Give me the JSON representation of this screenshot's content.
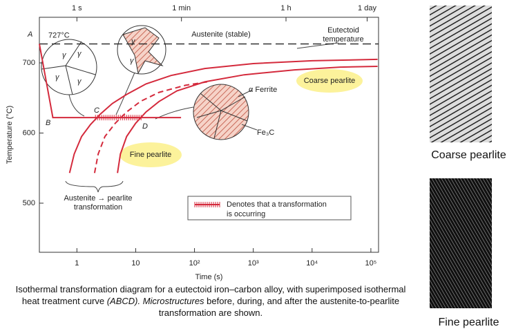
{
  "chart_data": {
    "type": "line",
    "log_x": true,
    "xlabel": "Time (s)",
    "ylabel": "Temperature (°C)",
    "xlim": [
      0.23,
      135000
    ],
    "ylim": [
      430,
      765
    ],
    "xticks": [
      1,
      10,
      {
        "value": 100,
        "label": "10²"
      },
      {
        "value": 1000,
        "label": "10³"
      },
      {
        "value": 10000,
        "label": "10⁴"
      },
      {
        "value": 100000,
        "label": "10⁵"
      }
    ],
    "x2ticks": [
      {
        "value": 1,
        "label": "1 s"
      },
      {
        "value": 60,
        "label": "1 min"
      },
      {
        "value": 3600,
        "label": "1 h"
      },
      {
        "value": 86400,
        "label": "1 day"
      }
    ],
    "yticks": [
      500,
      600,
      700
    ],
    "eutectoid": {
      "value": 727,
      "label": "727°C"
    },
    "series": [
      {
        "color": "#d42a3c",
        "dash": false,
        "x": [
          0.75,
          0.9,
          1.2,
          1.7,
          2.5,
          4,
          7,
          15,
          40,
          150,
          1000,
          10000,
          130000
        ],
        "values": [
          543,
          570,
          595,
          612,
          627,
          642,
          655,
          670,
          682,
          692,
          699,
          703,
          705
        ]
      },
      {
        "color": "#d42a3c",
        "dash": true,
        "x": [
          2,
          2.3,
          3,
          4.5,
          7,
          12,
          25,
          70,
          165
        ],
        "values": [
          543,
          570,
          595,
          614,
          630,
          645,
          658,
          668,
          673
        ]
      },
      {
        "color": "#d42a3c",
        "dash": false,
        "x": [
          4.9,
          5.5,
          7,
          10,
          15,
          25,
          50,
          150,
          700,
          5000,
          30000,
          130000
        ],
        "values": [
          543,
          570,
          595,
          614,
          630,
          645,
          660,
          673,
          683,
          690,
          694,
          695
        ]
      },
      {
        "color": "#d42a3c",
        "dash": false,
        "x": [
          0.23,
          0.39,
          59
        ],
        "values": [
          727,
          622,
          622
        ]
      }
    ],
    "transformation": {
      "x": [
        2.07,
        12.7
      ],
      "values": [
        622,
        622
      ]
    },
    "annotations": [
      "A",
      "B",
      "C",
      "D",
      "Austenite (stable)",
      "Eutectoid",
      "temperature",
      "α Ferrite",
      "Fe₃C",
      "Coarse pearlite",
      "Fine pearlite",
      "Austenite → pearlite",
      "transformation"
    ],
    "phase_labels": [
      "γ",
      "γ",
      "γ",
      "γ",
      "γ",
      "γ"
    ],
    "legend": [
      "Denotes that a transformation",
      "is occurring"
    ]
  },
  "caption": [
    "Isothermal transformation diagram for a eutectoid iron–carbon alloy, with superimposed isothermal heat treatment curve ",
    "(ABCD). Microstructures",
    " before, during, and after the austenite-to-pearlite transformation are shown."
  ],
  "micrographs": [
    "Coarse pearlite",
    "Fine pearlite"
  ]
}
